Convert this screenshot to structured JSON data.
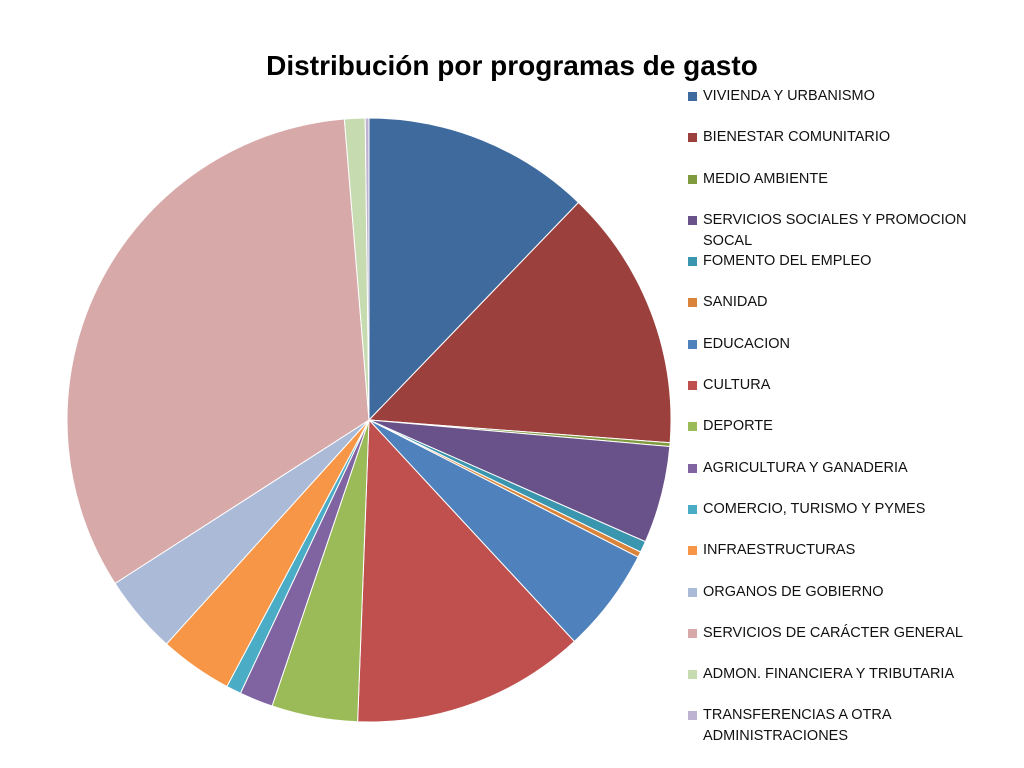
{
  "chart_data": {
    "type": "pie",
    "title": "Distribución por programas de gasto",
    "legend_position": "right",
    "categories": [
      "VIVIENDA Y URBANISMO",
      "BIENESTAR COMUNITARIO",
      "MEDIO AMBIENTE",
      "SERVICIOS SOCIALES Y PROMOCION SOCAL",
      "FOMENTO DEL EMPLEO",
      "SANIDAD",
      "EDUCACION",
      "CULTURA",
      "DEPORTE",
      "AGRICULTURA Y GANADERIA",
      "COMERCIO, TURISMO Y PYMES",
      "INFRAESTRUCTURAS",
      "ORGANOS DE GOBIERNO",
      "SERVICIOS DE CARÁCTER GENERAL",
      "ADMON. FINANCIERA Y TRIBUTARIA",
      "TRANSFERENCIAS A OTRA ADMINISTRACIONES"
    ],
    "values": [
      12.2,
      14.0,
      0.2,
      5.2,
      0.6,
      0.3,
      5.6,
      12.5,
      4.6,
      1.8,
      0.8,
      3.9,
      4.2,
      32.8,
      1.1,
      0.2
    ],
    "colors": [
      "#3F6A9E",
      "#9C403D",
      "#7F9B3E",
      "#69518A",
      "#3A95AE",
      "#D9843A",
      "#4F81BD",
      "#C0504D",
      "#9BBB59",
      "#8064A2",
      "#4BACC6",
      "#F79646",
      "#AABAD7",
      "#D7A9A8",
      "#C6DBB0",
      "#BEB3D1"
    ]
  }
}
